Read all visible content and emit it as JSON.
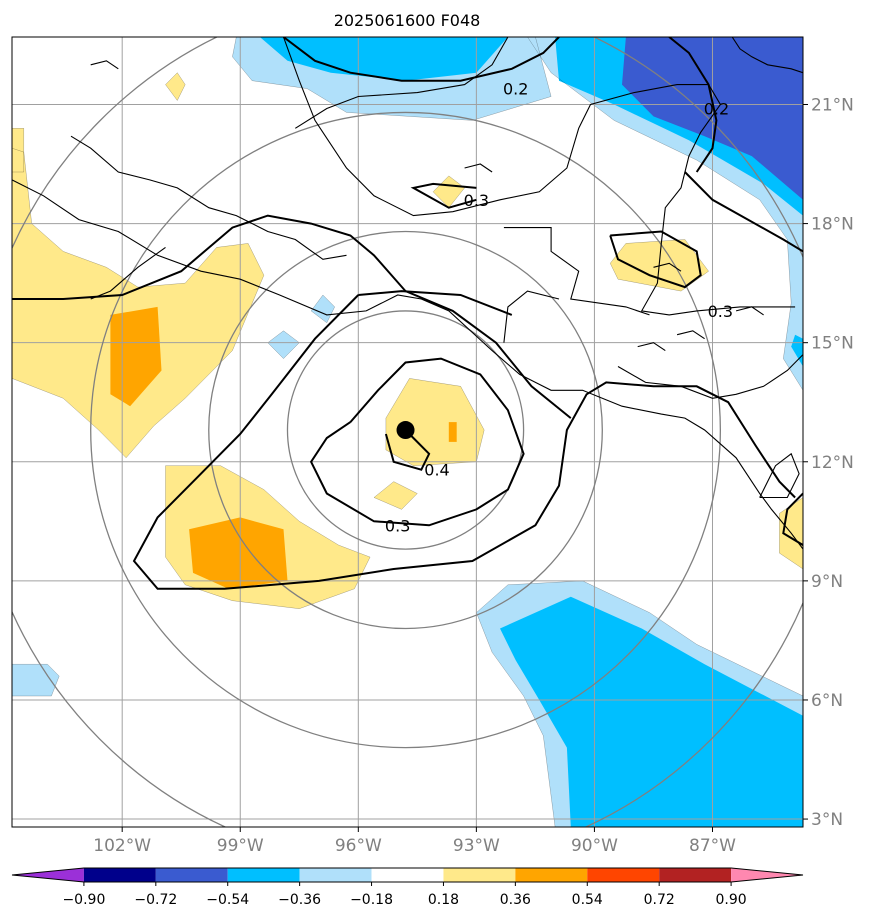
{
  "chart_data": {
    "type": "heatmap",
    "title": "2025061600 F048",
    "xlim": [
      -104.8,
      -84.7
    ],
    "ylim": [
      2.8,
      22.7
    ],
    "x_ticks": [
      -102,
      -99,
      -96,
      -93,
      -90,
      -87
    ],
    "x_tick_labels": [
      "102°W",
      "99°W",
      "96°W",
      "93°W",
      "90°W",
      "87°W"
    ],
    "y_ticks": [
      3,
      6,
      9,
      12,
      15,
      18,
      21
    ],
    "y_tick_labels": [
      "3°N",
      "6°N",
      "9°N",
      "12°N",
      "15°N",
      "18°N",
      "21°N"
    ],
    "grid": true,
    "colorbar": {
      "orientation": "horizontal",
      "levels": [
        -0.9,
        -0.72,
        -0.54,
        -0.36,
        -0.18,
        0.18,
        0.36,
        0.54,
        0.72,
        0.9
      ],
      "level_labels": [
        "−0.90",
        "−0.72",
        "−0.54",
        "−0.36",
        "−0.18",
        "0.18",
        "0.36",
        "0.54",
        "0.72",
        "0.90"
      ],
      "colors": [
        "#9b30d8",
        "#00008b",
        "#3a5bd0",
        "#00bfff",
        "#b0e0fa",
        "#ffffff",
        "#ffe98a",
        "#ffa500",
        "#ff4500",
        "#b22222",
        "#ff88b0"
      ]
    },
    "contour_labels": [
      {
        "text": "0.2",
        "lon": -92.0,
        "lat": 21.4
      },
      {
        "text": "0.2",
        "lon": -86.9,
        "lat": 20.9
      },
      {
        "text": "0.3",
        "lon": -93.0,
        "lat": 18.6
      },
      {
        "text": "0.3",
        "lon": -86.8,
        "lat": 15.8
      },
      {
        "text": "0.4",
        "lon": -94.0,
        "lat": 11.8
      },
      {
        "text": "0.3",
        "lon": -95.0,
        "lat": 10.4
      }
    ],
    "center_marker": {
      "lon": -94.8,
      "lat": 12.8
    },
    "range_rings_deg": [
      3,
      5,
      8,
      11
    ]
  }
}
